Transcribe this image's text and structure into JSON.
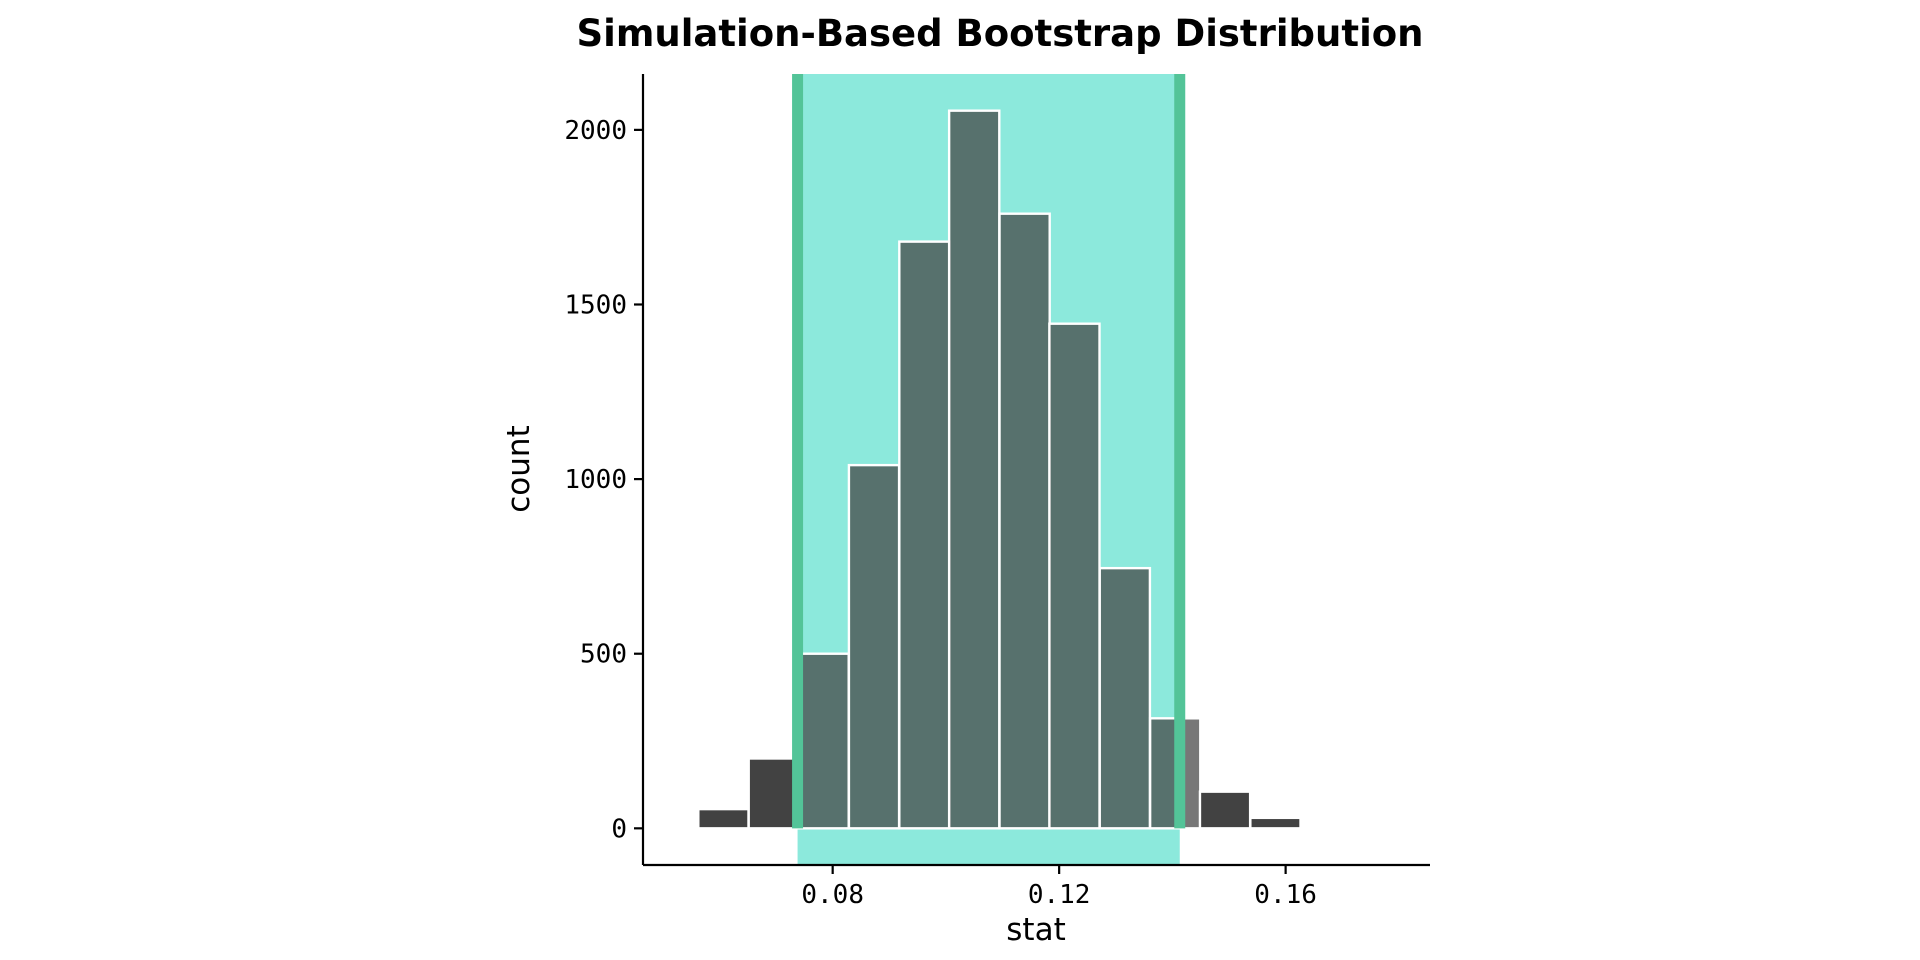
{
  "chart_data": {
    "type": "bar",
    "title": "Simulation-Based Bootstrap Distribution",
    "xlabel": "stat",
    "ylabel": "count",
    "xlim": [
      0.0465,
      0.1855
    ],
    "ylim": [
      -105,
      2160
    ],
    "x_ticks": [
      {
        "value": 0.08,
        "label": "0.08"
      },
      {
        "value": 0.12,
        "label": "0.12"
      },
      {
        "value": 0.16,
        "label": "0.16"
      }
    ],
    "y_ticks": [
      {
        "value": 0,
        "label": "0"
      },
      {
        "value": 500,
        "label": "500"
      },
      {
        "value": 1000,
        "label": "1000"
      },
      {
        "value": 1500,
        "label": "1500"
      },
      {
        "value": 2000,
        "label": "2000"
      }
    ],
    "bin_width": 0.00886,
    "bins": [
      {
        "center": 0.0519,
        "count": 5
      },
      {
        "center": 0.0607,
        "count": 55
      },
      {
        "center": 0.0696,
        "count": 200
      },
      {
        "center": 0.0784,
        "count": 500
      },
      {
        "center": 0.0873,
        "count": 1040
      },
      {
        "center": 0.0962,
        "count": 1680
      },
      {
        "center": 0.105,
        "count": 2055
      },
      {
        "center": 0.1139,
        "count": 1760
      },
      {
        "center": 0.1227,
        "count": 1445
      },
      {
        "center": 0.1316,
        "count": 745
      },
      {
        "center": 0.1405,
        "count": 315
      },
      {
        "center": 0.1493,
        "count": 105
      },
      {
        "center": 0.1582,
        "count": 30
      }
    ],
    "confidence_interval": {
      "lower": 0.0738,
      "upper": 0.1413
    },
    "grid": false,
    "legend": "none",
    "colors": {
      "bar_fill": "#424242",
      "bar_outline": "#ffffff",
      "interval_shade": "#8ce9dc",
      "interval_endpoint": "#53c498"
    }
  }
}
